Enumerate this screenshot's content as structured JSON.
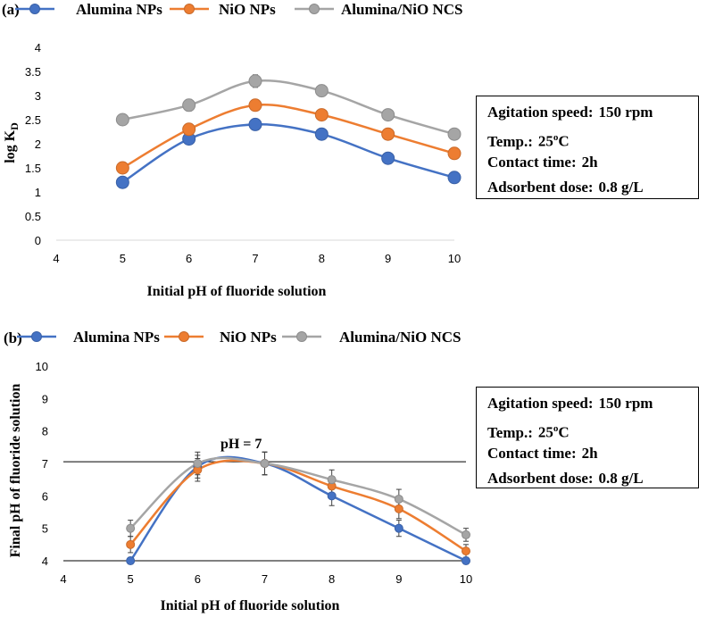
{
  "chart_data": [
    {
      "id": "a",
      "panel_label": "(a)",
      "type": "line",
      "xlabel": "Initial pH of fluoride solution",
      "ylabel": "log K",
      "ylabel_sub": "D",
      "xlim": [
        4,
        10
      ],
      "ylim": [
        0,
        4
      ],
      "x_ticks": [
        4,
        5,
        6,
        7,
        8,
        9,
        10
      ],
      "y_ticks": [
        0,
        0.5,
        1,
        1.5,
        2,
        2.5,
        3,
        3.5,
        4
      ],
      "y_tick_labels": [
        "0",
        "0.5",
        "1",
        "1.5",
        "2",
        "2.5",
        "3",
        "3.5",
        "4"
      ],
      "x": [
        5,
        6,
        7,
        8,
        9,
        10
      ],
      "series": [
        {
          "name": "Alumina NPs",
          "color": "#4472C4",
          "values": [
            1.2,
            2.1,
            2.4,
            2.2,
            1.7,
            1.3
          ],
          "errors": [
            0,
            0,
            0.08,
            0,
            0,
            0
          ]
        },
        {
          "name": "NiO NPs",
          "color": "#ED7D31",
          "values": [
            1.5,
            2.3,
            2.8,
            2.6,
            2.2,
            1.8
          ],
          "errors": [
            0,
            0.08,
            0.1,
            0.08,
            0,
            0
          ]
        },
        {
          "name": "Alumina/NiO NCS",
          "color": "#A5A5A5",
          "values": [
            2.5,
            2.8,
            3.3,
            3.1,
            2.6,
            2.2
          ],
          "errors": [
            0.1,
            0.12,
            0.13,
            0.12,
            0.08,
            0
          ]
        }
      ],
      "conditions": [
        {
          "label": "Agitation speed:",
          "value": "150 rpm"
        },
        {
          "label": "Temp.:",
          "value": "25",
          "sup": "o",
          "suffix": "C"
        },
        {
          "label": "Contact time:",
          "value": "2h"
        },
        {
          "label": "Adsorbent dose:",
          "value": "0.8 g/L"
        }
      ]
    },
    {
      "id": "b",
      "panel_label": "(b)",
      "type": "line",
      "xlabel": "Initial pH of fluoride solution",
      "ylabel": "Final pH of fluoride solution",
      "xlim": [
        4,
        10
      ],
      "ylim": [
        4,
        10
      ],
      "x_ticks": [
        4,
        5,
        6,
        7,
        8,
        9,
        10
      ],
      "y_ticks": [
        4,
        5,
        6,
        7,
        8,
        9,
        10
      ],
      "y_tick_labels": [
        "4",
        "5",
        "6",
        "7",
        "8",
        "9",
        "10"
      ],
      "x": [
        5,
        6,
        7,
        8,
        9,
        10
      ],
      "reference_line_y": 7.05,
      "annotation": "pH = 7",
      "series": [
        {
          "name": "Alumina NPs",
          "color": "#4472C4",
          "values": [
            4.0,
            6.9,
            7.0,
            6.0,
            5.0,
            4.0
          ],
          "errors": [
            0.1,
            0.35,
            0.35,
            0.3,
            0.25,
            0.1
          ]
        },
        {
          "name": "NiO NPs",
          "color": "#ED7D31",
          "values": [
            4.5,
            6.8,
            7.0,
            6.3,
            5.6,
            4.3
          ],
          "errors": [
            0.25,
            0.35,
            0.35,
            0.3,
            0.3,
            0.2
          ]
        },
        {
          "name": "Alumina/NiO NCS",
          "color": "#A5A5A5",
          "values": [
            5.0,
            7.0,
            7.0,
            6.5,
            5.9,
            4.8
          ],
          "errors": [
            0.25,
            0.35,
            0.35,
            0.3,
            0.3,
            0.2
          ]
        }
      ],
      "conditions": [
        {
          "label": "Agitation speed:",
          "value": "150 rpm"
        },
        {
          "label": "Temp.:",
          "value": "25",
          "sup": "o",
          "suffix": "C"
        },
        {
          "label": "Contact time:",
          "value": "2h"
        },
        {
          "label": "Adsorbent dose:",
          "value": "0.8 g/L"
        }
      ]
    }
  ]
}
